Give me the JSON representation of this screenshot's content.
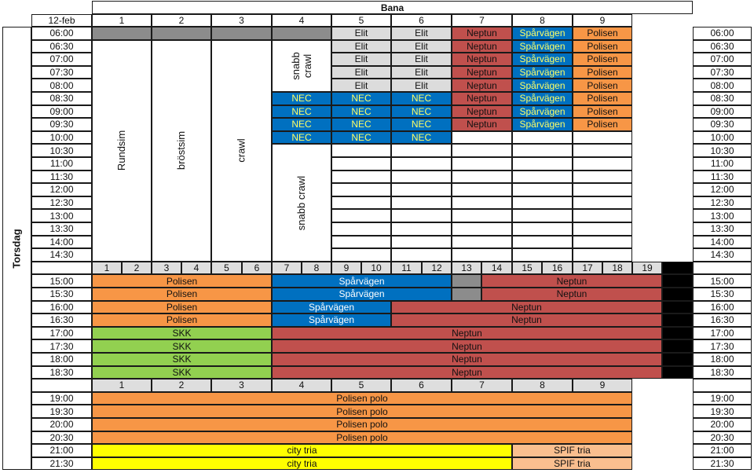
{
  "header": {
    "title": "Bana",
    "date": "12-feb",
    "day": "Torsdag",
    "lanes_9": [
      "1",
      "2",
      "3",
      "4",
      "5",
      "6",
      "7",
      "8",
      "9"
    ],
    "lanes_19": [
      "1",
      "2",
      "3",
      "4",
      "5",
      "6",
      "7",
      "8",
      "9",
      "10",
      "11",
      "12",
      "13",
      "14",
      "15",
      "16",
      "17",
      "18",
      "19"
    ]
  },
  "times": [
    "06:00",
    "06:30",
    "07:00",
    "07:30",
    "08:00",
    "08:30",
    "09:00",
    "09:30",
    "10:00",
    "10:30",
    "11:00",
    "11:30",
    "12:00",
    "12:30",
    "13:00",
    "13:30",
    "14:00",
    "14:30",
    "15:00",
    "15:30",
    "16:00",
    "16:30",
    "17:00",
    "17:30",
    "18:00",
    "18:30",
    "19:00",
    "19:30",
    "20:00",
    "20:30",
    "21:00",
    "21:30"
  ],
  "swim_blocks": {
    "lane1": "Rundsim",
    "lane2": "bröstsim",
    "lane3": "crawl",
    "lane4_top": "snabb crawl",
    "lane4_bottom": "snabb crawl"
  },
  "labels": {
    "elit": "Elit",
    "nec": "NEC",
    "neptun": "Neptun",
    "sparvagen": "Spårvägen",
    "polisen": "Polisen",
    "skk": "SKK",
    "polisen_polo": "Polisen polo",
    "city_tria": "city tria",
    "spif_tria": "SPIF tria"
  },
  "colors": {
    "gray": "#8c8c8c",
    "elit": "#dcdcdc",
    "neptun": "#c0504d",
    "sparvagen": "#0070c0",
    "polisen": "#f79646",
    "skk": "#92d050",
    "city_tria": "#ffff00",
    "spif_tria": "#fabf8f"
  }
}
